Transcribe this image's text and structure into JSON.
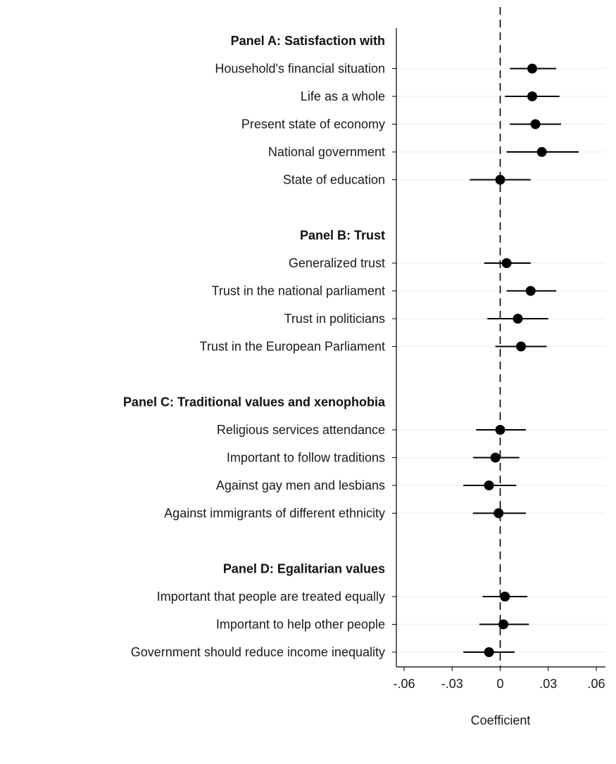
{
  "chart_data": {
    "type": "scatter",
    "subtype": "coefficient-plot",
    "xlabel": "Coefficient",
    "xlim": [
      -0.06,
      0.06
    ],
    "x_ticks": [
      -0.06,
      -0.03,
      0,
      0.03,
      0.06
    ],
    "x_tick_labels": [
      "-.06",
      "-.03",
      "0",
      ".03",
      ".06"
    ],
    "reference_line": 0,
    "grid": "horizontal",
    "colors": {
      "marker": "#000000",
      "ci": "#000000",
      "grid": "#eef2f3",
      "axis": "#000000"
    },
    "panels": [
      {
        "header": "Panel A: Satisfaction with",
        "items": [
          {
            "label": "Household's financial situation",
            "coef": 0.02,
            "ci": [
              0.006,
              0.035
            ]
          },
          {
            "label": "Life as a whole",
            "coef": 0.02,
            "ci": [
              0.003,
              0.037
            ]
          },
          {
            "label": "Present state of economy",
            "coef": 0.022,
            "ci": [
              0.006,
              0.038
            ]
          },
          {
            "label": "National government",
            "coef": 0.026,
            "ci": [
              0.004,
              0.049
            ]
          },
          {
            "label": "State of education",
            "coef": 0.0,
            "ci": [
              -0.019,
              0.019
            ]
          }
        ]
      },
      {
        "header": "Panel B: Trust",
        "items": [
          {
            "label": "Generalized trust",
            "coef": 0.004,
            "ci": [
              -0.01,
              0.019
            ]
          },
          {
            "label": "Trust in the national parliament",
            "coef": 0.019,
            "ci": [
              0.004,
              0.035
            ]
          },
          {
            "label": "Trust in politicians",
            "coef": 0.011,
            "ci": [
              -0.008,
              0.03
            ]
          },
          {
            "label": "Trust in the European Parliament",
            "coef": 0.013,
            "ci": [
              -0.003,
              0.029
            ]
          }
        ]
      },
      {
        "header": "Panel C: Traditional values and xenophobia",
        "items": [
          {
            "label": "Religious services attendance",
            "coef": 0.0,
            "ci": [
              -0.015,
              0.016
            ]
          },
          {
            "label": "Important to follow traditions",
            "coef": -0.003,
            "ci": [
              -0.017,
              0.012
            ]
          },
          {
            "label": "Against gay men and lesbians",
            "coef": -0.007,
            "ci": [
              -0.023,
              0.01
            ]
          },
          {
            "label": "Against immigrants of different ethnicity",
            "coef": -0.001,
            "ci": [
              -0.017,
              0.016
            ]
          }
        ]
      },
      {
        "header": "Panel D: Egalitarian values",
        "items": [
          {
            "label": "Important that people are treated equally",
            "coef": 0.003,
            "ci": [
              -0.011,
              0.017
            ]
          },
          {
            "label": "Important to help other people",
            "coef": 0.002,
            "ci": [
              -0.013,
              0.018
            ]
          },
          {
            "label": "Government should reduce income inequality",
            "coef": -0.007,
            "ci": [
              -0.023,
              0.009
            ]
          }
        ]
      }
    ]
  }
}
